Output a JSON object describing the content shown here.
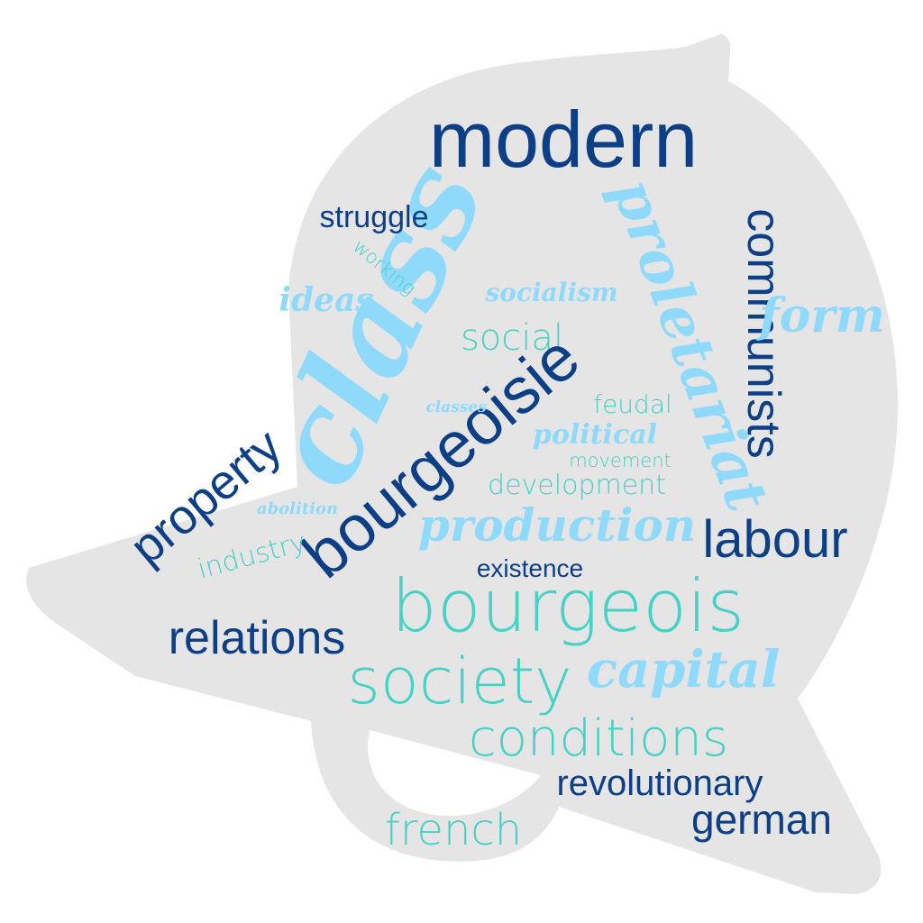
{
  "colors": {
    "background": "#ffffff",
    "bell_shape": "#e5e5e6",
    "dark_blue": "#0d3f86",
    "teal": "#48d1c4",
    "light_blue": "#8fd9fb"
  },
  "words": {
    "modern": "modern",
    "class": "class",
    "proletariat": "proletariat",
    "communists": "communists",
    "struggle": "struggle",
    "working": "working",
    "ideas": "ideas",
    "socialism": "socialism",
    "form": "form",
    "social": "social",
    "bourgeoisie": "bourgeoisie",
    "classes": "classes",
    "feudal": "feudal",
    "political": "political",
    "property": "property",
    "movement": "movement",
    "development": "development",
    "abolition": "abolition",
    "production": "production",
    "labour": "labour",
    "industry": "industry",
    "existence": "existence",
    "bourgeois": "bourgeois",
    "relations": "relations",
    "society": "society",
    "capital": "capital",
    "conditions": "conditions",
    "revolutionary": "revolutionary",
    "french": "french",
    "german": "german"
  }
}
